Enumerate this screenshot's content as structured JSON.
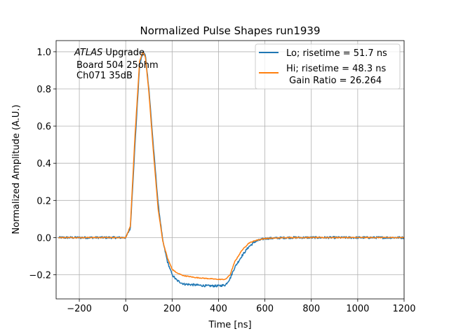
{
  "chart_data": {
    "type": "line",
    "title": "Normalized Pulse Shapes run1939",
    "xlabel": "Time [ns]",
    "ylabel": "Normalized Amplitude (A.U.)",
    "xlim": [
      -300,
      1200
    ],
    "ylim": [
      -0.33,
      1.06
    ],
    "xticks": [
      -200,
      0,
      200,
      400,
      600,
      800,
      1000,
      1200
    ],
    "xtick_labels": [
      "−200",
      "0",
      "200",
      "400",
      "600",
      "800",
      "1000",
      "1200"
    ],
    "yticks": [
      -0.2,
      0.0,
      0.2,
      0.4,
      0.6,
      0.8,
      1.0
    ],
    "ytick_labels": [
      "−0.2",
      "0.0",
      "0.2",
      "0.4",
      "0.6",
      "0.8",
      "1.0"
    ],
    "grid": true,
    "legend_position": "top-right",
    "annotation": {
      "italic": "ATLAS",
      "text1": " Upgrade",
      "line2": "Board 504 25ohm",
      "line3": "Ch071 35dB"
    },
    "series": [
      {
        "name": "Lo; risetime = 51.7 ns",
        "color": "#1f77b4",
        "noise": 0.006,
        "x": [
          -290,
          -200,
          -100,
          0,
          20,
          40,
          60,
          75,
          85,
          100,
          120,
          140,
          160,
          180,
          200,
          220,
          250,
          300,
          350,
          400,
          430,
          450,
          470,
          500,
          530,
          560,
          600,
          700,
          800,
          900,
          1000,
          1100,
          1200
        ],
        "y": [
          0.0,
          0.0,
          0.0,
          0.0,
          0.05,
          0.5,
          0.93,
          1.0,
          0.98,
          0.8,
          0.48,
          0.18,
          -0.02,
          -0.13,
          -0.2,
          -0.23,
          -0.25,
          -0.255,
          -0.26,
          -0.26,
          -0.255,
          -0.22,
          -0.16,
          -0.1,
          -0.05,
          -0.02,
          -0.005,
          0.0,
          0.0,
          0.0,
          0.0,
          0.0,
          0.0
        ]
      },
      {
        "name": "Hi; risetime = 48.3 ns",
        "name_line2": " Gain Ratio = 26.264",
        "color": "#ff7f0e",
        "noise": 0.002,
        "x": [
          -290,
          -200,
          -100,
          0,
          20,
          40,
          60,
          75,
          85,
          100,
          120,
          140,
          160,
          180,
          200,
          220,
          250,
          300,
          350,
          400,
          430,
          450,
          470,
          500,
          530,
          560,
          600,
          700,
          800,
          900,
          1000,
          1100,
          1200
        ],
        "y": [
          0.0,
          0.0,
          0.0,
          0.0,
          0.06,
          0.55,
          0.95,
          1.0,
          0.97,
          0.78,
          0.45,
          0.15,
          -0.02,
          -0.11,
          -0.17,
          -0.19,
          -0.205,
          -0.215,
          -0.22,
          -0.225,
          -0.225,
          -0.2,
          -0.13,
          -0.07,
          -0.03,
          -0.015,
          -0.005,
          0.0,
          0.0,
          0.0,
          0.0,
          0.0,
          0.0
        ]
      }
    ]
  }
}
